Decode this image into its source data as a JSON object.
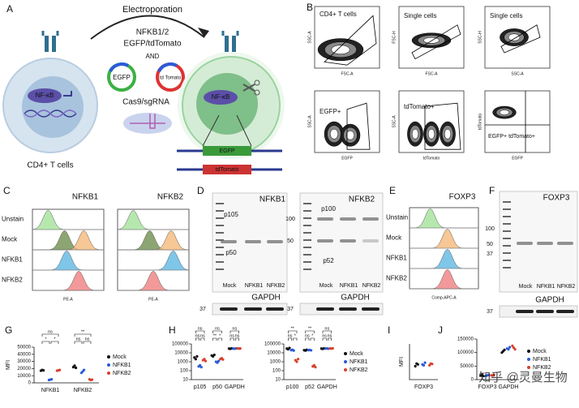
{
  "panel_labels": [
    "A",
    "B",
    "C",
    "D",
    "E",
    "F",
    "G",
    "H",
    "I",
    "J"
  ],
  "schematic": {
    "process": "Electroporation",
    "target": "NFKB1/2",
    "reporters": "EGFP/tdTomato",
    "joiner": "AND",
    "plasmid_1": "EGFP",
    "plasmid_2": "td Tomato",
    "reagent": "Cas9/sgRNA",
    "protein_before": "NF-κB",
    "protein_after": "NF-κB",
    "cell": "CD4+ T cells",
    "bar_1": "EGFP",
    "bar_2": "tdTomato"
  },
  "flow_gating": {
    "plots": [
      {
        "label": "CD4+ T cells",
        "x_axis": "FSC-A",
        "y_axis": "SSC-A"
      },
      {
        "label": "Single cells",
        "x_axis": "FSC-A",
        "y_axis": "FSC-H"
      },
      {
        "label": "Single cells",
        "x_axis": "SSC-A",
        "y_axis": "SSC-H"
      },
      {
        "label": "EGFP+",
        "x_axis": "EGFP",
        "y_axis": "SSC-A"
      },
      {
        "label": "tdTomato+",
        "x_axis": "tdTomato",
        "y_axis": "SSC-A"
      },
      {
        "label": "EGFP+ tdTomato+",
        "x_axis": "EGFP",
        "y_axis": "tdTomato"
      }
    ]
  },
  "histograms": {
    "rows": [
      "Unstain",
      "Mock",
      "NFKB1",
      "NFKB2"
    ],
    "panels": [
      {
        "title": "NFKB1",
        "x_axis": "PE-A"
      },
      {
        "title": "NFKB2",
        "x_axis": "PE-A"
      },
      {
        "title": "FOXP3",
        "x_axis": "Comp-APC-A"
      }
    ]
  },
  "blots": [
    {
      "title": "NFKB1",
      "markers": [],
      "bands": [
        "p105",
        "p50"
      ],
      "lanes": [
        "Mock",
        "NFKB1",
        "NFKB2"
      ],
      "loading": "GAPDH",
      "loading_marker": "37"
    },
    {
      "title": "NFKB2",
      "markers": [
        "100",
        "50"
      ],
      "bands": [
        "p100",
        "p52"
      ],
      "lanes": [
        "Mock",
        "NFKB1",
        "NFKB2"
      ],
      "loading": "GAPDH",
      "loading_marker": "37"
    },
    {
      "title": "FOXP3",
      "markers": [
        "100",
        "50",
        "37"
      ],
      "bands": [],
      "lanes": [
        "Mock",
        "NFKB1",
        "NFKB2"
      ],
      "loading": "GAPDH",
      "loading_marker": "37"
    }
  ],
  "watermark": "知乎 @灵曼生物",
  "chart_data": [
    {
      "type": "strip",
      "ylabel": "MFI",
      "categories": [
        "NFKB1",
        "NFKB2"
      ],
      "log": false,
      "ylim": [
        0,
        50000
      ],
      "yticks": [
        0,
        10000,
        20000,
        30000,
        40000,
        50000
      ],
      "legend": "right",
      "significance": [
        [
          "ns",
          "*",
          "*"
        ],
        [
          "**",
          "ns",
          "ns"
        ]
      ],
      "series": [
        {
          "name": "Mock",
          "color": "#111111",
          "values": [
            [
              17000,
              18000,
              17500
            ],
            [
              22000,
              24000,
              21000
            ]
          ]
        },
        {
          "name": "NFKB1",
          "color": "#2a5bd7",
          "values": [
            [
              4000,
              4500,
              5000
            ],
            [
              14000,
              16000,
              18000
            ]
          ]
        },
        {
          "name": "NFKB2",
          "color": "#d9402c",
          "values": [
            [
              17000,
              17500,
              18000
            ],
            [
              5000,
              4000,
              4500
            ]
          ]
        }
      ]
    },
    {
      "type": "strip",
      "categories": [
        "p105",
        "p50",
        "GAPDH"
      ],
      "log": true,
      "ylim": [
        10,
        100000
      ],
      "yticks": [
        10,
        100,
        1000,
        10000,
        100000
      ],
      "significance": [
        [
          "ns",
          "ns",
          "ns"
        ],
        [
          "ns",
          "**",
          "*"
        ],
        [
          "ns",
          "ns",
          "ns"
        ]
      ],
      "series": [
        {
          "name": "Mock",
          "color": "#111111",
          "values": [
            [
              3000,
              2000,
              4000
            ],
            [
              5000,
              4000,
              6000
            ],
            [
              30000,
              28000,
              32000
            ]
          ]
        },
        {
          "name": "NFKB1",
          "color": "#2a5bd7",
          "values": [
            [
              300,
              400,
              250
            ],
            [
              1000,
              800,
              1200
            ],
            [
              30000,
              29000,
              31000
            ]
          ]
        },
        {
          "name": "NFKB2",
          "color": "#d9402c",
          "values": [
            [
              1500,
              2000,
              1200
            ],
            [
              2000,
              2500,
              1800
            ],
            [
              32000,
              30000,
              31000
            ]
          ]
        }
      ]
    },
    {
      "type": "strip",
      "categories": [
        "p100",
        "p52",
        "GAPDH"
      ],
      "log": true,
      "ylim": [
        10,
        100000
      ],
      "yticks": [
        10,
        100,
        1000,
        10000,
        100000
      ],
      "legend": "right",
      "significance": [
        [
          "**",
          "ns",
          "*"
        ],
        [
          "**",
          "ns",
          "*"
        ],
        [
          "ns",
          "ns",
          "ns"
        ]
      ],
      "series": [
        {
          "name": "Mock",
          "color": "#111111",
          "values": [
            [
              30000,
              25000,
              35000
            ],
            [
              20000,
              18000,
              22000
            ],
            [
              30000,
              28000,
              32000
            ]
          ]
        },
        {
          "name": "NFKB1",
          "color": "#2a5bd7",
          "values": [
            [
              20000,
              22000,
              18000
            ],
            [
              20000,
              21000,
              19000
            ],
            [
              30000,
              31000,
              29000
            ]
          ]
        },
        {
          "name": "NFKB2",
          "color": "#d9402c",
          "values": [
            [
              1500,
              1000,
              2000
            ],
            [
              300,
              400,
              250
            ],
            [
              31000,
              30000,
              32000
            ]
          ]
        }
      ]
    },
    {
      "type": "strip",
      "ylabel": "MFI",
      "categories": [
        "FOXP3"
      ],
      "log": false,
      "ylim": [
        0,
        4000
      ],
      "series": [
        {
          "name": "Mock",
          "color": "#111111",
          "values": [
            [
              1500,
              1800,
              1700
            ]
          ]
        },
        {
          "name": "NFKB1",
          "color": "#2a5bd7",
          "values": [
            [
              1700,
              1600,
              1900
            ]
          ]
        },
        {
          "name": "NFKB2",
          "color": "#d9402c",
          "values": [
            [
              1600,
              1800,
              1750
            ]
          ]
        }
      ]
    },
    {
      "type": "strip",
      "categories": [
        "FOXP3",
        "GAPDH"
      ],
      "log": false,
      "ylim": [
        0,
        150000
      ],
      "yticks": [
        0,
        50000,
        100000,
        150000
      ],
      "legend": "right",
      "series": [
        {
          "name": "Mock",
          "color": "#111111",
          "values": [
            [
              15000,
              18000,
              13000
            ],
            [
              100000,
              105000,
              110000
            ]
          ]
        },
        {
          "name": "NFKB1",
          "color": "#2a5bd7",
          "values": [
            [
              14000,
              16000,
              17000
            ],
            [
              115000,
              112000,
              120000
            ]
          ]
        },
        {
          "name": "NFKB2",
          "color": "#d9402c",
          "values": [
            [
              16000,
              15000,
              18000
            ],
            [
              125000,
              118000,
              112000
            ]
          ]
        }
      ]
    }
  ]
}
